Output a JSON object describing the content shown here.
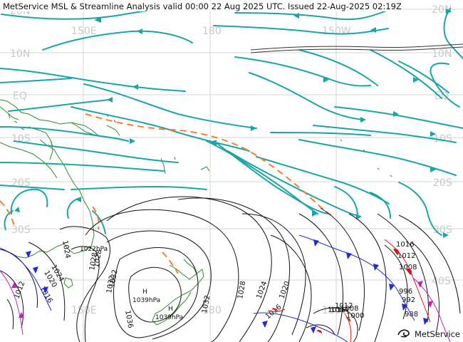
{
  "title": "MetService MSL & Streamline Analysis valid 00:00 22 Aug 2025 UTC. Issued 22-Aug-2025 02:19Z",
  "brand": "MetService",
  "grid_labels": {
    "lat_left": [
      "10N",
      "EQ",
      "10S",
      "20S",
      "30S"
    ],
    "lat_right": [
      "20N",
      "10N",
      "EQ",
      "10S",
      "20S",
      "30S",
      "40S"
    ],
    "lon_top": [
      "150E",
      "180",
      "150W"
    ],
    "lon_bottom": [
      "150E",
      "180",
      "150W"
    ],
    "lat_top_left": "20N"
  },
  "isobar_labels": [
    "1024",
    "1028",
    "1032",
    "1036",
    "1032",
    "1028",
    "1024",
    "1020",
    "1016",
    "1012",
    "1016",
    "1020",
    "1024",
    "1028",
    "1032",
    "1016",
    "1012",
    "1008",
    "1004",
    "1000",
    "996",
    "992",
    "988",
    "1016",
    "1012",
    "1008"
  ],
  "pressure_centres": [
    {
      "symbol": "H",
      "value": "1022hPa"
    },
    {
      "symbol": "H",
      "value": "1039hPa"
    },
    {
      "symbol": "H",
      "value": "1039hPa"
    }
  ],
  "colors": {
    "streamline": "#1aa5a5",
    "isobar": "#111111",
    "coast": "#2e8b2e",
    "grid": "#c8c8c8",
    "trough": "#ff7a2a",
    "cold_front": "#1f2bd6",
    "warm_front": "#e01010",
    "occluded": "#c020c0"
  },
  "icons": [
    "metservice-logo-icon"
  ]
}
